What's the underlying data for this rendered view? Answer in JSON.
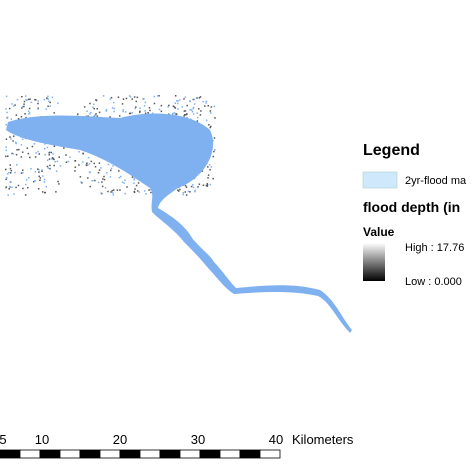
{
  "legend": {
    "title": "Legend",
    "layer": "2yr-flood ma",
    "raster_title": "flood depth (in",
    "value_heading": "Value",
    "high": "High : 17.76",
    "low": "Low : 0.000"
  },
  "scale_bar": {
    "labels": [
      "5",
      "10",
      "20",
      "30",
      "40"
    ],
    "unit": "Kilometers"
  }
}
